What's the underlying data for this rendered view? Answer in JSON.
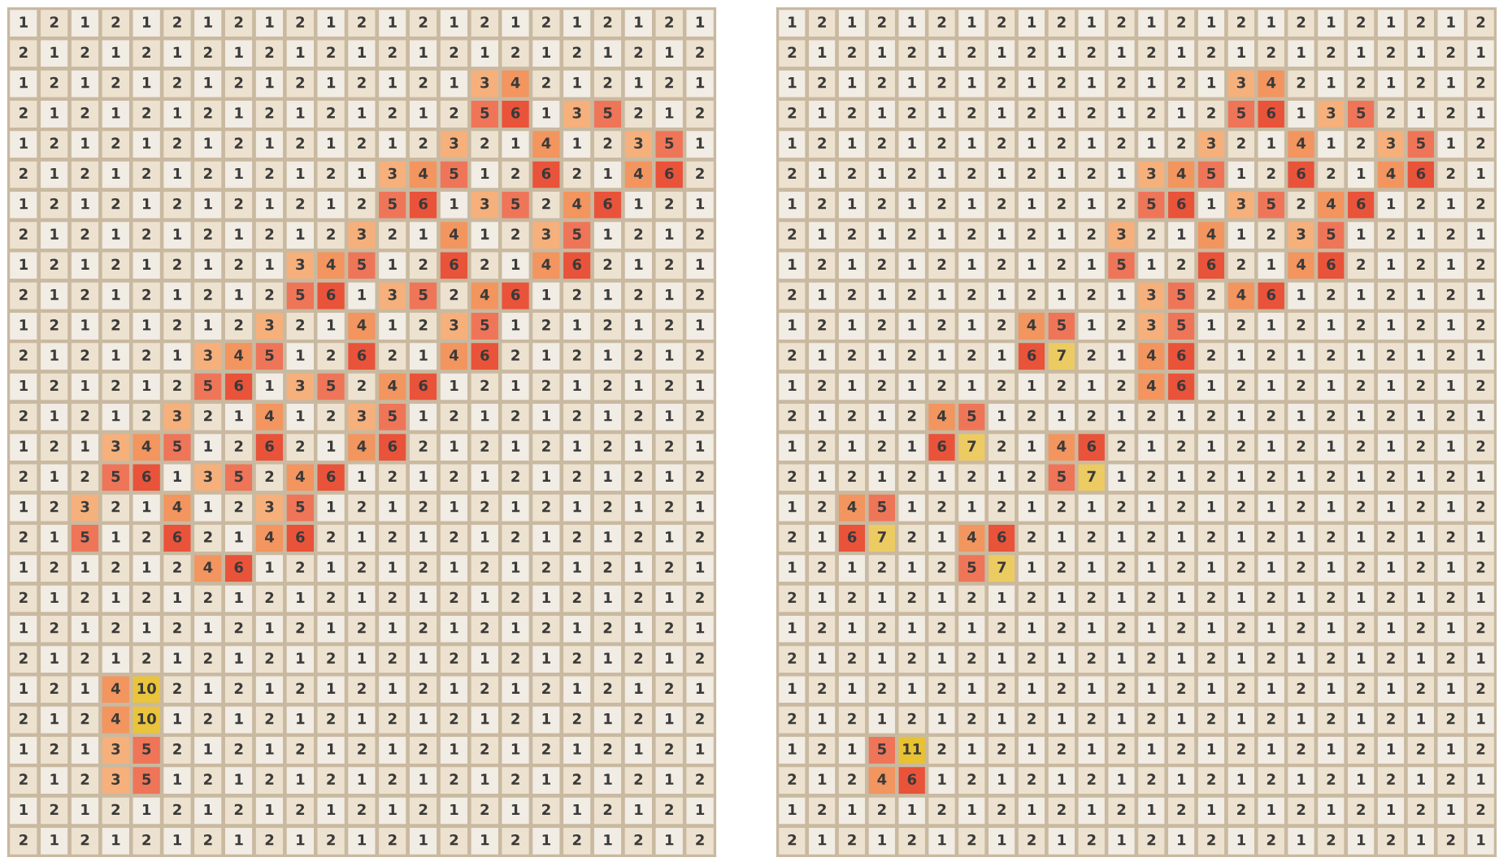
{
  "chart_data": [
    {
      "type": "heatmap",
      "data_labels": true,
      "categories": [
        null,
        null,
        null,
        null,
        null,
        null,
        null,
        null,
        null,
        null,
        null,
        null,
        null,
        null,
        null,
        null,
        null,
        null,
        null,
        null,
        null,
        null,
        null
      ],
      "y_categories": [
        null,
        null,
        null,
        null,
        null,
        null,
        null,
        null,
        null,
        null,
        null,
        null,
        null,
        null,
        null,
        null,
        null,
        null,
        null,
        null,
        null,
        null,
        null,
        null,
        null,
        null,
        null,
        null
      ],
      "cells": [
        [
          1,
          2,
          1,
          2,
          1,
          2,
          1,
          2,
          1,
          2,
          1,
          2,
          1,
          2,
          1,
          2,
          1,
          2,
          1,
          2,
          1,
          2,
          1
        ],
        [
          2,
          1,
          2,
          1,
          2,
          1,
          2,
          1,
          2,
          1,
          2,
          1,
          2,
          1,
          2,
          1,
          2,
          1,
          2,
          1,
          2,
          1,
          2
        ],
        [
          1,
          2,
          1,
          2,
          1,
          2,
          1,
          2,
          1,
          2,
          1,
          2,
          1,
          2,
          1,
          3,
          4,
          2,
          1,
          2,
          1,
          2,
          1
        ],
        [
          2,
          1,
          2,
          1,
          2,
          1,
          2,
          1,
          2,
          1,
          2,
          1,
          2,
          1,
          2,
          5,
          6,
          1,
          3,
          5,
          2,
          1,
          2
        ],
        [
          1,
          2,
          1,
          2,
          1,
          2,
          1,
          2,
          1,
          2,
          1,
          2,
          1,
          2,
          3,
          2,
          1,
          4,
          1,
          2,
          3,
          5,
          1
        ],
        [
          2,
          1,
          2,
          1,
          2,
          1,
          2,
          1,
          2,
          1,
          2,
          1,
          3,
          4,
          5,
          1,
          2,
          6,
          2,
          1,
          4,
          6,
          2
        ],
        [
          1,
          2,
          1,
          2,
          1,
          2,
          1,
          2,
          1,
          2,
          1,
          2,
          5,
          6,
          1,
          3,
          5,
          2,
          4,
          6,
          1,
          2,
          1
        ],
        [
          2,
          1,
          2,
          1,
          2,
          1,
          2,
          1,
          2,
          1,
          2,
          3,
          2,
          1,
          4,
          1,
          2,
          3,
          5,
          1,
          2,
          1,
          2
        ],
        [
          1,
          2,
          1,
          2,
          1,
          2,
          1,
          2,
          1,
          3,
          4,
          5,
          1,
          2,
          6,
          2,
          1,
          4,
          6,
          2,
          1,
          2,
          1
        ],
        [
          2,
          1,
          2,
          1,
          2,
          1,
          2,
          1,
          2,
          5,
          6,
          1,
          3,
          5,
          2,
          4,
          6,
          1,
          2,
          1,
          2,
          1,
          2
        ],
        [
          1,
          2,
          1,
          2,
          1,
          2,
          1,
          2,
          3,
          2,
          1,
          4,
          1,
          2,
          3,
          5,
          1,
          2,
          1,
          2,
          1,
          2,
          1
        ],
        [
          2,
          1,
          2,
          1,
          2,
          1,
          3,
          4,
          5,
          1,
          2,
          6,
          2,
          1,
          4,
          6,
          2,
          1,
          2,
          1,
          2,
          1,
          2
        ],
        [
          1,
          2,
          1,
          2,
          1,
          2,
          5,
          6,
          1,
          3,
          5,
          2,
          4,
          6,
          1,
          2,
          1,
          2,
          1,
          2,
          1,
          2,
          1
        ],
        [
          2,
          1,
          2,
          1,
          2,
          3,
          2,
          1,
          4,
          1,
          2,
          3,
          5,
          1,
          2,
          1,
          2,
          1,
          2,
          1,
          2,
          1,
          2
        ],
        [
          1,
          2,
          1,
          3,
          4,
          5,
          1,
          2,
          6,
          2,
          1,
          4,
          6,
          2,
          1,
          2,
          1,
          2,
          1,
          2,
          1,
          2,
          1
        ],
        [
          2,
          1,
          2,
          5,
          6,
          1,
          3,
          5,
          2,
          4,
          6,
          1,
          2,
          1,
          2,
          1,
          2,
          1,
          2,
          1,
          2,
          1,
          2
        ],
        [
          1,
          2,
          3,
          2,
          1,
          4,
          1,
          2,
          3,
          5,
          1,
          2,
          1,
          2,
          1,
          2,
          1,
          2,
          1,
          2,
          1,
          2,
          1
        ],
        [
          2,
          1,
          5,
          1,
          2,
          6,
          2,
          1,
          4,
          6,
          2,
          1,
          2,
          1,
          2,
          1,
          2,
          1,
          2,
          1,
          2,
          1,
          2
        ],
        [
          1,
          2,
          1,
          2,
          1,
          2,
          4,
          6,
          1,
          2,
          1,
          2,
          1,
          2,
          1,
          2,
          1,
          2,
          1,
          2,
          1,
          2,
          1
        ],
        [
          2,
          1,
          2,
          1,
          2,
          1,
          2,
          1,
          2,
          1,
          2,
          1,
          2,
          1,
          2,
          1,
          2,
          1,
          2,
          1,
          2,
          1,
          2
        ],
        [
          1,
          2,
          1,
          2,
          1,
          2,
          1,
          2,
          1,
          2,
          1,
          2,
          1,
          2,
          1,
          2,
          1,
          2,
          1,
          2,
          1,
          2,
          1
        ],
        [
          2,
          1,
          2,
          1,
          2,
          1,
          2,
          1,
          2,
          1,
          2,
          1,
          2,
          1,
          2,
          1,
          2,
          1,
          2,
          1,
          2,
          1,
          2
        ],
        [
          1,
          2,
          1,
          4,
          10,
          2,
          1,
          2,
          1,
          2,
          1,
          2,
          1,
          2,
          1,
          2,
          1,
          2,
          1,
          2,
          1,
          2,
          1
        ],
        [
          2,
          1,
          2,
          4,
          10,
          1,
          2,
          1,
          2,
          1,
          2,
          1,
          2,
          1,
          2,
          1,
          2,
          1,
          2,
          1,
          2,
          1,
          2
        ],
        [
          1,
          2,
          1,
          3,
          5,
          2,
          1,
          2,
          1,
          2,
          1,
          2,
          1,
          2,
          1,
          2,
          1,
          2,
          1,
          2,
          1,
          2,
          1
        ],
        [
          2,
          1,
          2,
          3,
          5,
          1,
          2,
          1,
          2,
          1,
          2,
          1,
          2,
          1,
          2,
          1,
          2,
          1,
          2,
          1,
          2,
          1,
          2
        ],
        [
          1,
          2,
          1,
          2,
          1,
          2,
          1,
          2,
          1,
          2,
          1,
          2,
          1,
          2,
          1,
          2,
          1,
          2,
          1,
          2,
          1,
          2,
          1
        ],
        [
          2,
          1,
          2,
          1,
          2,
          1,
          2,
          1,
          2,
          1,
          2,
          1,
          2,
          1,
          2,
          1,
          2,
          1,
          2,
          1,
          2,
          1,
          2
        ]
      ]
    },
    {
      "type": "heatmap",
      "data_labels": true,
      "categories": [
        null,
        null,
        null,
        null,
        null,
        null,
        null,
        null,
        null,
        null,
        null,
        null,
        null,
        null,
        null,
        null,
        null,
        null,
        null,
        null,
        null,
        null,
        null,
        null
      ],
      "y_categories": [
        null,
        null,
        null,
        null,
        null,
        null,
        null,
        null,
        null,
        null,
        null,
        null,
        null,
        null,
        null,
        null,
        null,
        null,
        null,
        null,
        null,
        null,
        null,
        null,
        null,
        null,
        null,
        null
      ],
      "cells": [
        [
          1,
          2,
          1,
          2,
          1,
          2,
          1,
          2,
          1,
          2,
          1,
          2,
          1,
          2,
          1,
          2,
          1,
          2,
          1,
          2,
          1,
          2,
          1,
          2
        ],
        [
          2,
          1,
          2,
          1,
          2,
          1,
          2,
          1,
          2,
          1,
          2,
          1,
          2,
          1,
          2,
          1,
          2,
          1,
          2,
          1,
          2,
          1,
          2,
          1
        ],
        [
          1,
          2,
          1,
          2,
          1,
          2,
          1,
          2,
          1,
          2,
          1,
          2,
          1,
          2,
          1,
          3,
          4,
          2,
          1,
          2,
          1,
          2,
          1,
          2
        ],
        [
          2,
          1,
          2,
          1,
          2,
          1,
          2,
          1,
          2,
          1,
          2,
          1,
          2,
          1,
          2,
          5,
          6,
          1,
          3,
          5,
          2,
          1,
          2,
          1
        ],
        [
          1,
          2,
          1,
          2,
          1,
          2,
          1,
          2,
          1,
          2,
          1,
          2,
          1,
          2,
          3,
          2,
          1,
          4,
          1,
          2,
          3,
          5,
          1,
          2
        ],
        [
          2,
          1,
          2,
          1,
          2,
          1,
          2,
          1,
          2,
          1,
          2,
          1,
          3,
          4,
          5,
          1,
          2,
          6,
          2,
          1,
          4,
          6,
          2,
          1
        ],
        [
          1,
          2,
          1,
          2,
          1,
          2,
          1,
          2,
          1,
          2,
          1,
          2,
          5,
          6,
          1,
          3,
          5,
          2,
          4,
          6,
          1,
          2,
          1,
          2
        ],
        [
          2,
          1,
          2,
          1,
          2,
          1,
          2,
          1,
          2,
          1,
          2,
          3,
          2,
          1,
          4,
          1,
          2,
          3,
          5,
          1,
          2,
          1,
          2,
          1
        ],
        [
          1,
          2,
          1,
          2,
          1,
          2,
          1,
          2,
          1,
          2,
          1,
          5,
          1,
          2,
          6,
          2,
          1,
          4,
          6,
          2,
          1,
          2,
          1,
          2
        ],
        [
          2,
          1,
          2,
          1,
          2,
          1,
          2,
          1,
          2,
          1,
          2,
          1,
          3,
          5,
          2,
          4,
          6,
          1,
          2,
          1,
          2,
          1,
          2,
          1
        ],
        [
          1,
          2,
          1,
          2,
          1,
          2,
          1,
          2,
          4,
          5,
          1,
          2,
          3,
          5,
          1,
          2,
          1,
          2,
          1,
          2,
          1,
          2,
          1,
          2
        ],
        [
          2,
          1,
          2,
          1,
          2,
          1,
          2,
          1,
          6,
          7,
          2,
          1,
          4,
          6,
          2,
          1,
          2,
          1,
          2,
          1,
          2,
          1,
          2,
          1
        ],
        [
          1,
          2,
          1,
          2,
          1,
          2,
          1,
          2,
          1,
          2,
          1,
          2,
          4,
          6,
          1,
          2,
          1,
          2,
          1,
          2,
          1,
          2,
          1,
          2
        ],
        [
          2,
          1,
          2,
          1,
          2,
          4,
          5,
          1,
          2,
          1,
          2,
          1,
          2,
          1,
          2,
          1,
          2,
          1,
          2,
          1,
          2,
          1,
          2,
          1
        ],
        [
          1,
          2,
          1,
          2,
          1,
          6,
          7,
          2,
          1,
          4,
          6,
          2,
          1,
          2,
          1,
          2,
          1,
          2,
          1,
          2,
          1,
          2,
          1,
          2
        ],
        [
          2,
          1,
          2,
          1,
          2,
          1,
          2,
          1,
          2,
          5,
          7,
          1,
          2,
          1,
          2,
          1,
          2,
          1,
          2,
          1,
          2,
          1,
          2,
          1
        ],
        [
          1,
          2,
          4,
          5,
          1,
          2,
          1,
          2,
          1,
          2,
          1,
          2,
          1,
          2,
          1,
          2,
          1,
          2,
          1,
          2,
          1,
          2,
          1,
          2
        ],
        [
          2,
          1,
          6,
          7,
          2,
          1,
          4,
          6,
          2,
          1,
          2,
          1,
          2,
          1,
          2,
          1,
          2,
          1,
          2,
          1,
          2,
          1,
          2,
          1
        ],
        [
          1,
          2,
          1,
          2,
          1,
          2,
          5,
          7,
          1,
          2,
          1,
          2,
          1,
          2,
          1,
          2,
          1,
          2,
          1,
          2,
          1,
          2,
          1,
          2
        ],
        [
          2,
          1,
          2,
          1,
          2,
          1,
          2,
          1,
          2,
          1,
          2,
          1,
          2,
          1,
          2,
          1,
          2,
          1,
          2,
          1,
          2,
          1,
          2,
          1
        ],
        [
          1,
          2,
          1,
          2,
          1,
          2,
          1,
          2,
          1,
          2,
          1,
          2,
          1,
          2,
          1,
          2,
          1,
          2,
          1,
          2,
          1,
          2,
          1,
          2
        ],
        [
          2,
          1,
          2,
          1,
          2,
          1,
          2,
          1,
          2,
          1,
          2,
          1,
          2,
          1,
          2,
          1,
          2,
          1,
          2,
          1,
          2,
          1,
          2,
          1
        ],
        [
          1,
          2,
          1,
          2,
          1,
          2,
          1,
          2,
          1,
          2,
          1,
          2,
          1,
          2,
          1,
          2,
          1,
          2,
          1,
          2,
          1,
          2,
          1,
          2
        ],
        [
          2,
          1,
          2,
          1,
          2,
          1,
          2,
          1,
          2,
          1,
          2,
          1,
          2,
          1,
          2,
          1,
          2,
          1,
          2,
          1,
          2,
          1,
          2,
          1
        ],
        [
          1,
          2,
          1,
          5,
          11,
          2,
          1,
          2,
          1,
          2,
          1,
          2,
          1,
          2,
          1,
          2,
          1,
          2,
          1,
          2,
          1,
          2,
          1,
          2
        ],
        [
          2,
          1,
          2,
          4,
          6,
          1,
          2,
          1,
          2,
          1,
          2,
          1,
          2,
          1,
          2,
          1,
          2,
          1,
          2,
          1,
          2,
          1,
          2,
          1
        ],
        [
          1,
          2,
          1,
          2,
          1,
          2,
          1,
          2,
          1,
          2,
          1,
          2,
          1,
          2,
          1,
          2,
          1,
          2,
          1,
          2,
          1,
          2,
          1,
          2
        ],
        [
          2,
          1,
          2,
          1,
          2,
          1,
          2,
          1,
          2,
          1,
          2,
          1,
          2,
          1,
          2,
          1,
          2,
          1,
          2,
          1,
          2,
          1,
          2,
          1
        ]
      ]
    }
  ]
}
